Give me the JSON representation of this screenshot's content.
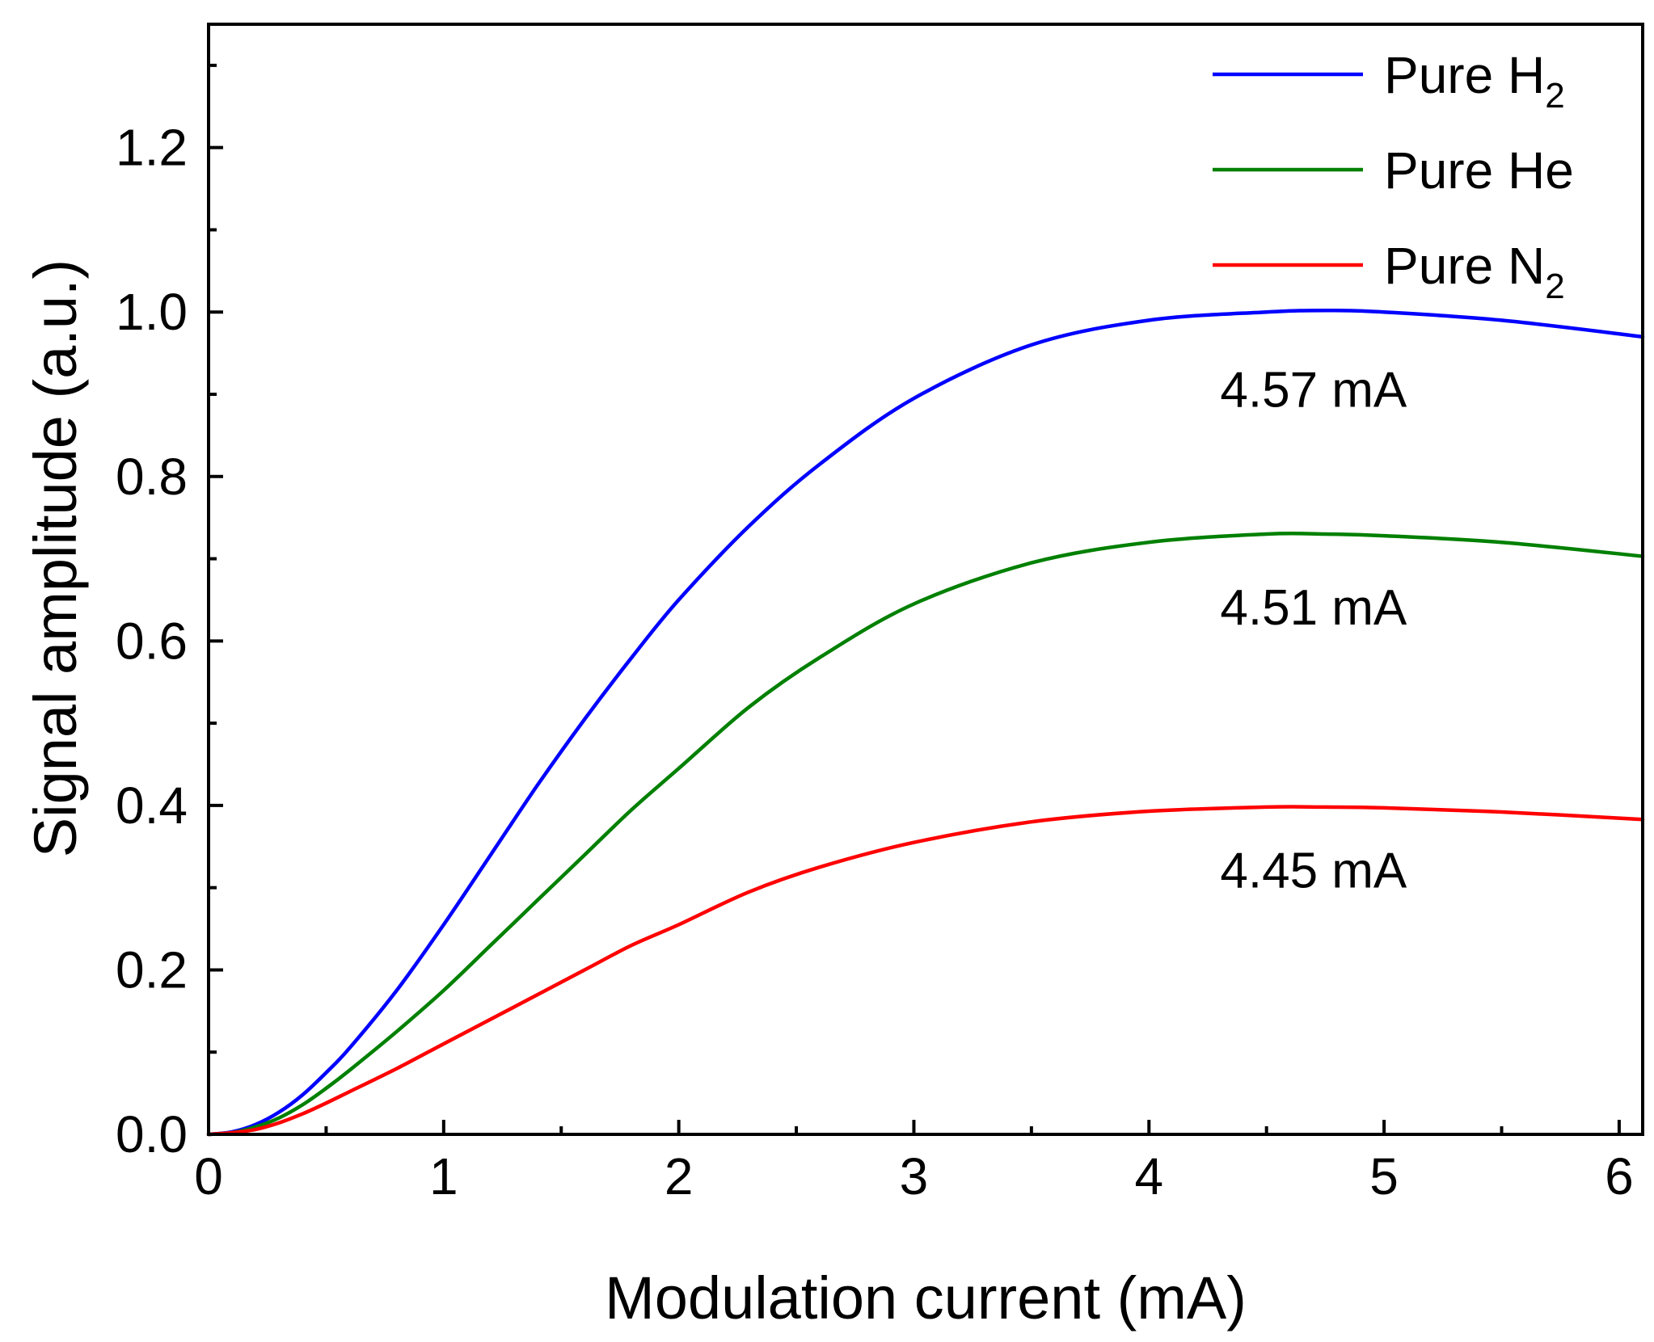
{
  "chart_data": {
    "type": "line",
    "title": "",
    "xlabel": "Modulation current (mA)",
    "ylabel": "Signal amplitude (a.u.)",
    "xlim": [
      0,
      6.1
    ],
    "ylim": [
      0,
      1.35
    ],
    "x_ticks": [
      0,
      1,
      2,
      3,
      4,
      5,
      6
    ],
    "x_tick_labels": [
      "0",
      "1",
      "2",
      "3",
      "4",
      "5",
      "6"
    ],
    "y_ticks": [
      0,
      0.2,
      0.4,
      0.6,
      0.8,
      1.0,
      1.2
    ],
    "y_tick_labels": [
      "0.0",
      "0.2",
      "0.4",
      "0.6",
      "0.8",
      "1.0",
      "1.2"
    ],
    "grid": false,
    "legend_position": "top-right",
    "x": [
      0,
      0.1,
      0.2,
      0.3,
      0.4,
      0.5,
      0.6,
      0.8,
      1.0,
      1.2,
      1.4,
      1.6,
      1.8,
      2.0,
      2.3,
      2.6,
      3.0,
      3.5,
      4.0,
      4.5,
      4.75,
      5.0,
      5.5,
      6.1
    ],
    "series": [
      {
        "name": "Pure H",
        "subscript": "2",
        "color": "#0000ff",
        "values": [
          0.0,
          0.003,
          0.012,
          0.027,
          0.048,
          0.075,
          0.105,
          0.175,
          0.255,
          0.34,
          0.425,
          0.505,
          0.58,
          0.65,
          0.74,
          0.815,
          0.895,
          0.96,
          0.99,
          1.0,
          1.002,
          1.0,
          0.99,
          0.97
        ]
      },
      {
        "name": "Pure He",
        "subscript": "",
        "color": "#008000",
        "values": [
          0.0,
          0.002,
          0.009,
          0.02,
          0.036,
          0.056,
          0.078,
          0.125,
          0.175,
          0.23,
          0.285,
          0.34,
          0.395,
          0.445,
          0.52,
          0.58,
          0.645,
          0.695,
          0.72,
          0.73,
          0.73,
          0.728,
          0.72,
          0.703
        ]
      },
      {
        "name": "Pure N",
        "subscript": "2",
        "color": "#ff0000",
        "values": [
          0.0,
          0.002,
          0.006,
          0.014,
          0.025,
          0.038,
          0.052,
          0.08,
          0.11,
          0.14,
          0.17,
          0.2,
          0.23,
          0.255,
          0.295,
          0.325,
          0.355,
          0.38,
          0.393,
          0.398,
          0.398,
          0.397,
          0.392,
          0.383
        ]
      }
    ],
    "annotations": [
      {
        "text": "4.57 mA",
        "x": 4.7,
        "y": 0.885
      },
      {
        "text": "4.51 mA",
        "x": 4.7,
        "y": 0.62
      },
      {
        "text": "4.45 mA",
        "x": 4.7,
        "y": 0.3
      }
    ]
  }
}
